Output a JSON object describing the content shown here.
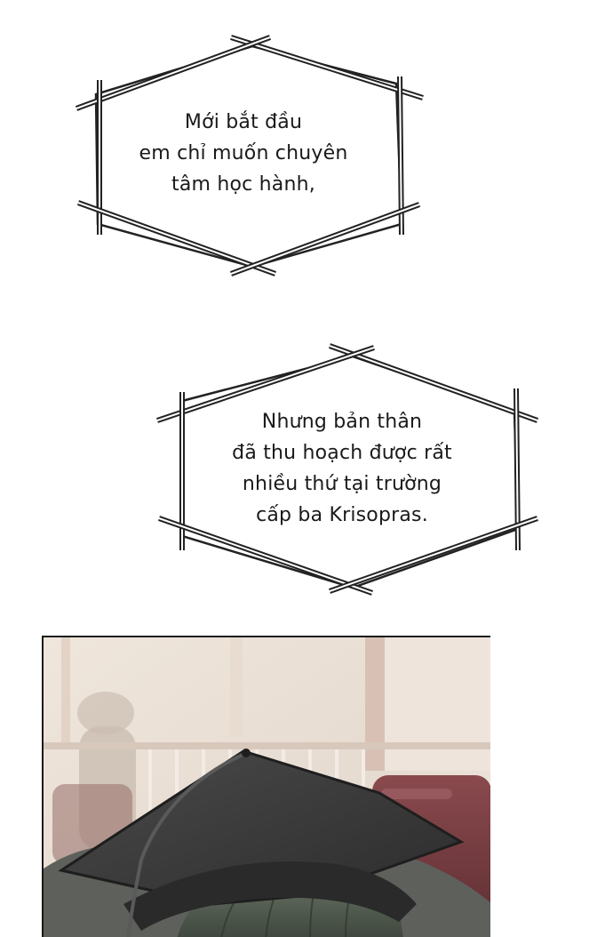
{
  "bubbles": [
    {
      "lines": [
        "Mới bắt đầu",
        "em chỉ muốn chuyên",
        "tâm học hành,"
      ]
    },
    {
      "lines": [
        "Nhưng bản thân",
        "đã thu hoạch được rất",
        "nhiều thứ tại trường",
        "cấp ba Krisopras."
      ]
    }
  ],
  "colors": {
    "text": "#1a1a1a",
    "outline": "#222222",
    "panel_wall": "#e8dfd6",
    "panel_seat": "#7a3b3f",
    "cap": "#3b3b3b"
  }
}
